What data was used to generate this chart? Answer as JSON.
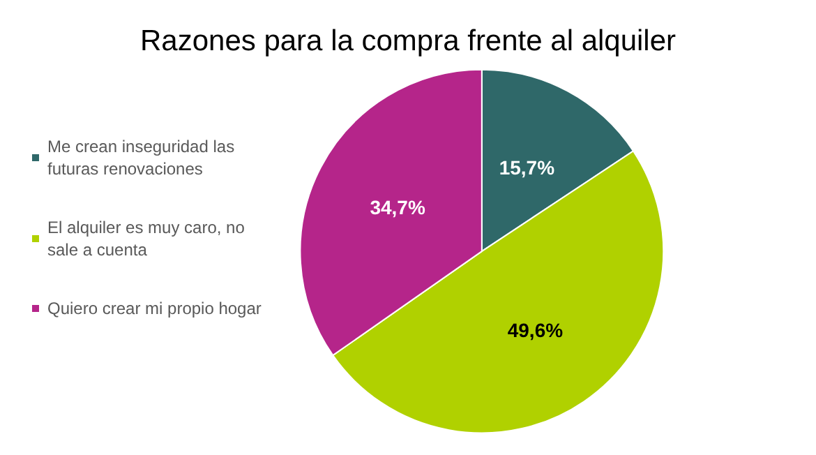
{
  "chart_data": {
    "type": "pie",
    "title": "Razones para la compra frente al alquiler",
    "categories": [
      "Me crean inseguridad las futuras renovaciones",
      "El alquiler es muy caro, no sale a cuenta",
      "Quiero crear mi propio hogar"
    ],
    "values": [
      15.7,
      49.6,
      34.7
    ],
    "colors": [
      "#2f6869",
      "#b0d100",
      "#b5258a"
    ],
    "value_labels": [
      "15,7%",
      "49,6%",
      "34,7%"
    ],
    "legend": "left"
  }
}
